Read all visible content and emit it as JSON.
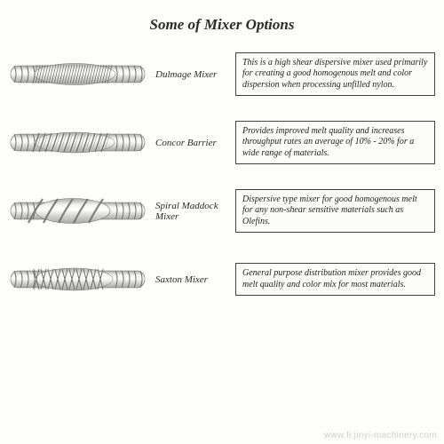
{
  "title": "Some of Mixer Options",
  "title_fontsize": 17,
  "label_fontsize": 11,
  "desc_fontsize": 10,
  "watermark_fontsize": 10,
  "background_color": "#fdfdfb",
  "border_color": "#444444",
  "text_color": "#2a2a2a",
  "mixer_render": {
    "body_fill_light": "#f2f2f0",
    "body_fill_mid": "#d4d4d2",
    "body_fill_dark": "#a8a8a6",
    "stroke": "#6e6e6c",
    "highlight": "#ffffff"
  },
  "mixers": [
    {
      "label": "Dulmage Mixer",
      "description": "This is a high shear dispersive mixer used primarily for creating a good homogenous melt and color dispersion when processing unfilled nylon.",
      "pattern": "dulmage"
    },
    {
      "label": "Concor Barrier",
      "description": "Provides improved melt quality and increases throughput rates an average of 10% - 20% for a wide range of materials.",
      "pattern": "concor"
    },
    {
      "label": "Spiral Maddock Mixer",
      "description": "Dispersive type mixer for good homogenous melt for any non-shear sensitive materials such as Olefins.",
      "pattern": "spiral"
    },
    {
      "label": "Saxton Mixer",
      "description": "General purpose distribution mixer provides good melt quality and color mix for most materials.",
      "pattern": "saxton"
    }
  ],
  "watermark": "www.fi.jinyi-machinery.com"
}
